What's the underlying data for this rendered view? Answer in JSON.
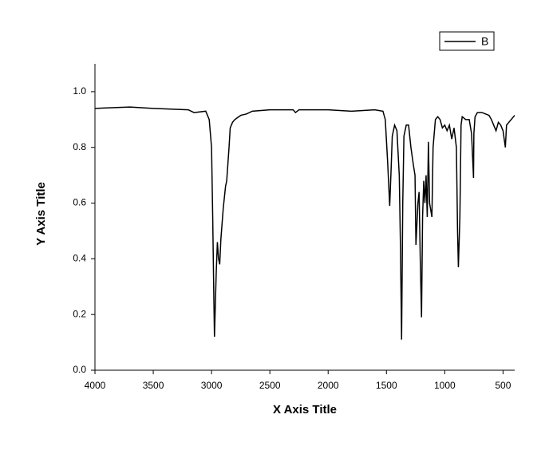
{
  "chart_data": {
    "type": "line",
    "x_label": "X Axis Title",
    "y_label": "Y Axis Title",
    "x": [
      4000,
      3700,
      3500,
      3200,
      3150,
      3050,
      3020,
      3000,
      2990,
      2980,
      2975,
      2960,
      2950,
      2940,
      2930,
      2920,
      2900,
      2880,
      2870,
      2850,
      2840,
      2820,
      2800,
      2750,
      2700,
      2650,
      2500,
      2300,
      2280,
      2250,
      2000,
      1800,
      1600,
      1530,
      1510,
      1490,
      1472,
      1460,
      1450,
      1430,
      1410,
      1390,
      1380,
      1370,
      1360,
      1350,
      1330,
      1310,
      1290,
      1270,
      1255,
      1247,
      1230,
      1220,
      1210,
      1199,
      1190,
      1180,
      1170,
      1160,
      1150,
      1140,
      1130,
      1110,
      1100,
      1080,
      1060,
      1040,
      1020,
      1000,
      980,
      960,
      940,
      920,
      900,
      890,
      883,
      870,
      860,
      850,
      820,
      790,
      770,
      753,
      750,
      740,
      720,
      680,
      650,
      620,
      600,
      580,
      560,
      540,
      520,
      500,
      480,
      470,
      450,
      430,
      410,
      400
    ],
    "series": [
      {
        "name": "B",
        "color": "#000000",
        "values": [
          0.94,
          0.945,
          0.94,
          0.935,
          0.925,
          0.93,
          0.9,
          0.8,
          0.55,
          0.25,
          0.12,
          0.35,
          0.46,
          0.4,
          0.38,
          0.47,
          0.58,
          0.66,
          0.68,
          0.8,
          0.87,
          0.89,
          0.9,
          0.915,
          0.92,
          0.93,
          0.935,
          0.935,
          0.925,
          0.935,
          0.935,
          0.93,
          0.935,
          0.93,
          0.9,
          0.75,
          0.59,
          0.72,
          0.84,
          0.88,
          0.86,
          0.7,
          0.45,
          0.11,
          0.6,
          0.84,
          0.88,
          0.88,
          0.8,
          0.74,
          0.7,
          0.45,
          0.6,
          0.64,
          0.4,
          0.19,
          0.55,
          0.68,
          0.6,
          0.7,
          0.55,
          0.82,
          0.6,
          0.55,
          0.8,
          0.9,
          0.91,
          0.9,
          0.87,
          0.88,
          0.86,
          0.88,
          0.83,
          0.87,
          0.8,
          0.5,
          0.37,
          0.55,
          0.88,
          0.91,
          0.9,
          0.9,
          0.85,
          0.69,
          0.85,
          0.91,
          0.925,
          0.925,
          0.92,
          0.915,
          0.9,
          0.88,
          0.86,
          0.89,
          0.88,
          0.86,
          0.8,
          0.88,
          0.89,
          0.9,
          0.91,
          0.915
        ]
      }
    ],
    "xlim": [
      4000,
      400
    ],
    "ylim": [
      0,
      1.1
    ],
    "xticks": [
      4000,
      3500,
      3000,
      2500,
      2000,
      1500,
      1000,
      500
    ],
    "yticks": [
      {
        "value": 0,
        "label": "0.0"
      },
      0.2,
      0.4,
      0.6,
      0.8,
      {
        "value": 1,
        "label": "1.0"
      }
    ],
    "legend": "top-right"
  }
}
